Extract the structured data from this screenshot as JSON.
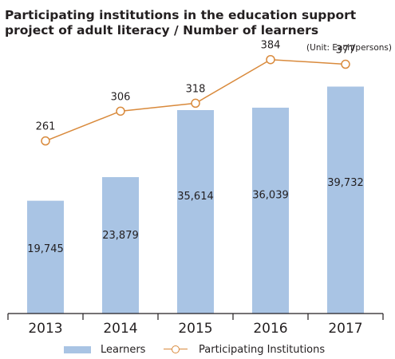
{
  "title_lines": [
    "Participating institutions in the education support",
    "project of adult literacy / Number of learners"
  ],
  "unit": "(Unit: Each/persons)",
  "colors": {
    "bar": "#a9c4e4",
    "line": "#d98a3c",
    "axis": "#231f20",
    "text": "#231f20"
  },
  "chart_data": {
    "type": "bar",
    "categories": [
      "2013",
      "2014",
      "2015",
      "2016",
      "2017"
    ],
    "series": [
      {
        "name": "Learners",
        "type": "bar",
        "values": [
          19745,
          23879,
          35614,
          36039,
          39732
        ],
        "labels": [
          "19,745",
          "23,879",
          "35,614",
          "36,039",
          "39,732"
        ]
      },
      {
        "name": "Participating Institutions",
        "type": "line",
        "values": [
          261,
          306,
          318,
          384,
          377
        ],
        "labels": [
          "261",
          "306",
          "318",
          "384",
          "377"
        ]
      }
    ],
    "ylim_bar": [
      0,
      50000
    ],
    "ylim_line": [
      0,
      450
    ],
    "grid": false,
    "legend": "bottom"
  }
}
